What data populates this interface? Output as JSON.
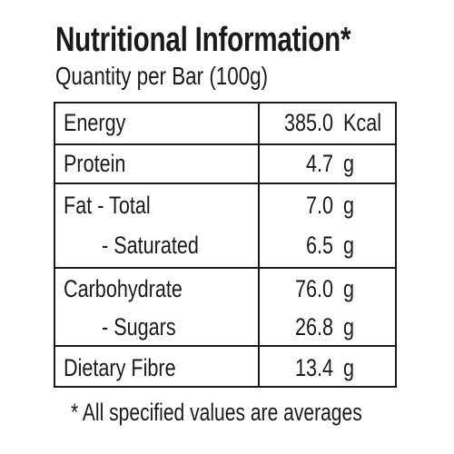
{
  "title": "Nutritional Information*",
  "subtitle": "Quantity per Bar (100g)",
  "rows": [
    {
      "label": "Energy",
      "value": "385.0",
      "unit": "Kcal"
    },
    {
      "label": "Protein",
      "value": "4.7",
      "unit": "g"
    },
    {
      "label": "Fat - Total",
      "value": "7.0",
      "unit": "g"
    },
    {
      "label": "- Saturated",
      "value": "6.5",
      "unit": "g"
    },
    {
      "label": "Carbohydrate",
      "value": "76.0",
      "unit": "g"
    },
    {
      "label": "- Sugars",
      "value": "26.8",
      "unit": "g"
    },
    {
      "label": "Dietary Fibre",
      "value": "13.4",
      "unit": "g"
    }
  ],
  "footnote": "* All specified values are averages"
}
